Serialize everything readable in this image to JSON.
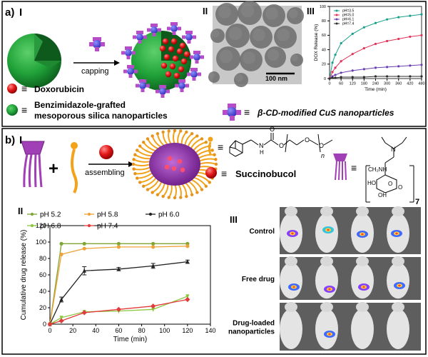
{
  "panel_a": {
    "label": "a)",
    "sub_i": "I",
    "sub_ii": "II",
    "sub_iii": "III",
    "capping": "capping",
    "equiv": "≡",
    "doxorubicin": "Doxorubicin",
    "msn_line1": "Benzimidazole-grafted",
    "msn_line2": "mesoporous silica nanoparticles",
    "cd_cus": "β-CD-modified CuS nanoparticles",
    "scale_bar": "100 nm"
  },
  "panel_b": {
    "label": "b)",
    "sub_i": "I",
    "sub_ii": "II",
    "sub_iii": "III",
    "plus": "+",
    "assembling": "assembling",
    "equiv": "≡",
    "succinobucol": "Succinobucol",
    "chem_n": "n",
    "chem_o": "O",
    "chem_h": "H",
    "chem_n_atom": "N",
    "chem_ho": "HO",
    "chem_oh": "OH",
    "chem_ch2nh": "CH₂NH",
    "chem_seven": "7",
    "imaging_rows": [
      "Control",
      "Free drug",
      "Drug-loaded\nnanoparticles"
    ]
  },
  "chart_data": [
    {
      "type": "line",
      "title": "",
      "xlabel": "Time (min)",
      "ylabel": "DOX Release (%)",
      "xlim": [
        0,
        480
      ],
      "ylim": [
        0,
        100
      ],
      "xticks": [
        0,
        60,
        120,
        180,
        240,
        300,
        360,
        420,
        480
      ],
      "yticks": [
        0,
        20,
        40,
        60,
        80,
        100
      ],
      "legend_position": "top-left",
      "series": [
        {
          "name": "pH=3.5",
          "color": "#1aa08a",
          "x": [
            0,
            15,
            30,
            60,
            120,
            180,
            240,
            300,
            360,
            420,
            480
          ],
          "y": [
            0,
            22,
            33,
            49,
            62,
            71,
            77,
            82,
            85,
            87,
            89
          ]
        },
        {
          "name": "pH=5.0",
          "color": "#e0335a",
          "x": [
            0,
            15,
            30,
            60,
            120,
            180,
            240,
            300,
            360,
            420,
            480
          ],
          "y": [
            0,
            9,
            15,
            24,
            34,
            42,
            48,
            52,
            55,
            58,
            60
          ]
        },
        {
          "name": "pH=6.1",
          "color": "#6a3fb0",
          "x": [
            0,
            15,
            30,
            60,
            120,
            180,
            240,
            300,
            360,
            420,
            480
          ],
          "y": [
            0,
            3,
            5,
            8,
            11,
            13,
            15,
            16,
            17,
            18,
            19
          ]
        },
        {
          "name": "pH=7.4",
          "color": "#2c2c2c",
          "x": [
            0,
            15,
            30,
            60,
            120,
            180,
            240,
            300,
            360,
            420,
            480
          ],
          "y": [
            0,
            1,
            1,
            2,
            2,
            2,
            3,
            3,
            3,
            3,
            3
          ]
        }
      ]
    },
    {
      "type": "line",
      "title": "",
      "xlabel": "Time (min)",
      "ylabel": "Cumulative drug release (%)",
      "xlim": [
        0,
        140
      ],
      "ylim": [
        0,
        120
      ],
      "xticks": [
        0,
        20,
        40,
        60,
        80,
        100,
        120,
        140
      ],
      "yticks": [
        0,
        20,
        40,
        60,
        80,
        100,
        120
      ],
      "legend_position": "top",
      "series": [
        {
          "name": "pH 5.2",
          "color": "#7fa532",
          "marker": "circle",
          "x": [
            0,
            10,
            30,
            60,
            90,
            120
          ],
          "y": [
            0,
            98,
            98,
            98,
            98,
            98
          ]
        },
        {
          "name": "pH 5.8",
          "color": "#f0a23a",
          "marker": "circle",
          "x": [
            0,
            10,
            30,
            60,
            90,
            120
          ],
          "y": [
            0,
            85,
            92,
            94,
            94,
            95
          ]
        },
        {
          "name": "pH 6.0",
          "color": "#222222",
          "marker": "triangle",
          "x": [
            0,
            10,
            30,
            60,
            90,
            120
          ],
          "y": [
            0,
            30,
            65,
            67,
            71,
            76
          ],
          "err": [
            0,
            3,
            5,
            2,
            3,
            2
          ]
        },
        {
          "name": "pH 6.8",
          "color": "#8cc63f",
          "marker": "triangle-down",
          "x": [
            0,
            10,
            30,
            60,
            90,
            120
          ],
          "y": [
            0,
            8,
            15,
            16,
            18,
            34
          ]
        },
        {
          "name": "pH 7.4",
          "color": "#e23b3b",
          "marker": "diamond",
          "x": [
            0,
            10,
            30,
            60,
            90,
            120
          ],
          "y": [
            0,
            4,
            14,
            18,
            22,
            30
          ]
        }
      ]
    }
  ]
}
